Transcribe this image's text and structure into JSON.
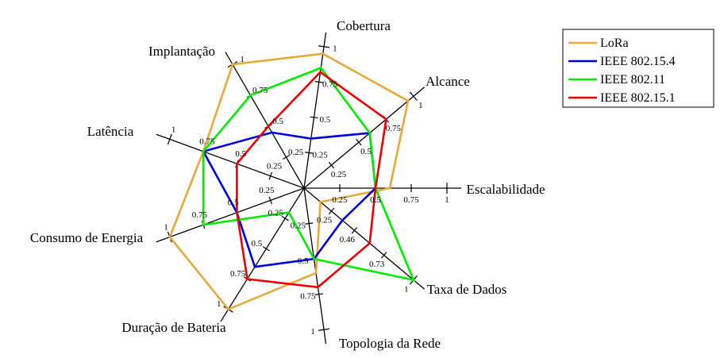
{
  "chart_data": {
    "type": "radar",
    "axes": [
      {
        "label": "Cobertura",
        "ticks": [
          "0.25",
          "0.5",
          "0.75",
          "1"
        ]
      },
      {
        "label": "Alcance",
        "ticks": [
          "0.25",
          "0.5",
          "0.75",
          "1"
        ]
      },
      {
        "label": "Escalabilidade",
        "ticks": [
          "0.25",
          "0.5",
          "0.75",
          "1"
        ]
      },
      {
        "label": "Taxa de Dados",
        "ticks": [
          "0.25",
          "0.46",
          "0.73",
          "1"
        ]
      },
      {
        "label": "Topologia da Rede",
        "ticks": [
          "0.25",
          "0.5",
          "0.75",
          "1"
        ]
      },
      {
        "label": "Duração de Bateria",
        "ticks": [
          "0.25",
          "0.5",
          "0.75",
          "1"
        ]
      },
      {
        "label": "Consumo de Energia",
        "ticks": [
          "0.25",
          "0.5",
          "0.75",
          "1"
        ]
      },
      {
        "label": "Latência",
        "ticks": [
          "0.25",
          "0.5",
          "0.75",
          "1"
        ]
      },
      {
        "label": "Implantação",
        "ticks": [
          "0.25",
          "0.5",
          "0.75",
          "1"
        ]
      }
    ],
    "range": [
      0,
      1
    ],
    "series": [
      {
        "name": "LoRa",
        "color": "#E8A93B",
        "values": [
          0.95,
          0.95,
          0.6,
          0.15,
          0.6,
          1.0,
          1.0,
          0.75,
          1.0
        ]
      },
      {
        "name": "IEEE 802.15.4",
        "color": "#0000DD",
        "values": [
          0.35,
          0.6,
          0.5,
          0.35,
          0.5,
          0.65,
          0.5,
          0.75,
          0.45
        ]
      },
      {
        "name": "IEEE 802.11",
        "color": "#00EE00",
        "values": [
          0.85,
          0.6,
          0.5,
          1.0,
          0.5,
          0.2,
          0.75,
          0.75,
          0.75
        ]
      },
      {
        "name": "IEEE 802.15.1",
        "color": "#EE0000",
        "values": [
          0.82,
          0.75,
          0.5,
          0.6,
          0.7,
          0.75,
          0.5,
          0.5,
          0.5
        ]
      }
    ],
    "legend_position": "top-right",
    "grid": false
  }
}
